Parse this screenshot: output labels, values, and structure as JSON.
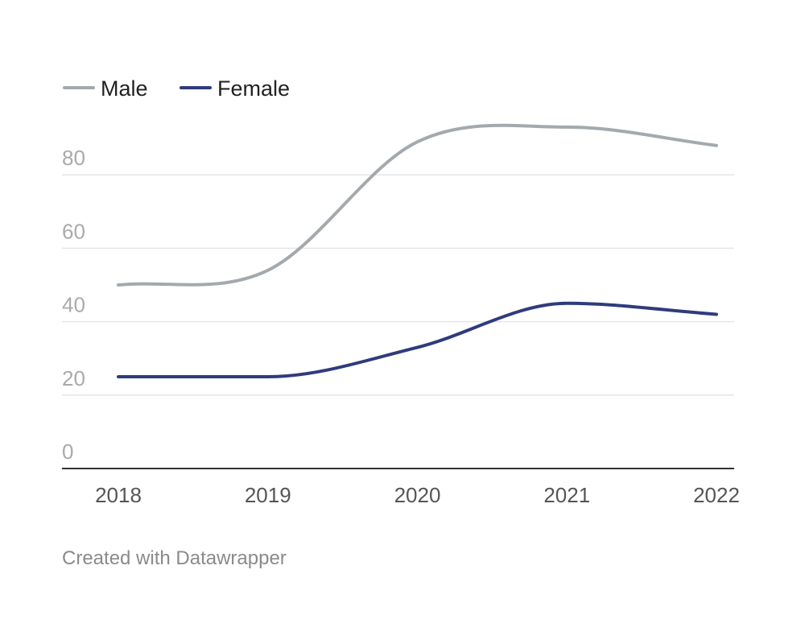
{
  "chart_data": {
    "type": "line",
    "x": [
      "2018",
      "2019",
      "2020",
      "2021",
      "2022"
    ],
    "series": [
      {
        "name": "Male",
        "values": [
          50,
          54,
          89,
          93,
          88
        ]
      },
      {
        "name": "Female",
        "values": [
          25,
          25,
          33,
          45,
          42
        ]
      }
    ],
    "yticks": [
      "0",
      "20",
      "40",
      "60",
      "80"
    ],
    "ylim": [
      0,
      100
    ],
    "grid": true,
    "legend": "top-left",
    "colors": {
      "Male": "#a3a9ad",
      "Female": "#2f3b7c"
    }
  },
  "footer": "Created with Datawrapper"
}
